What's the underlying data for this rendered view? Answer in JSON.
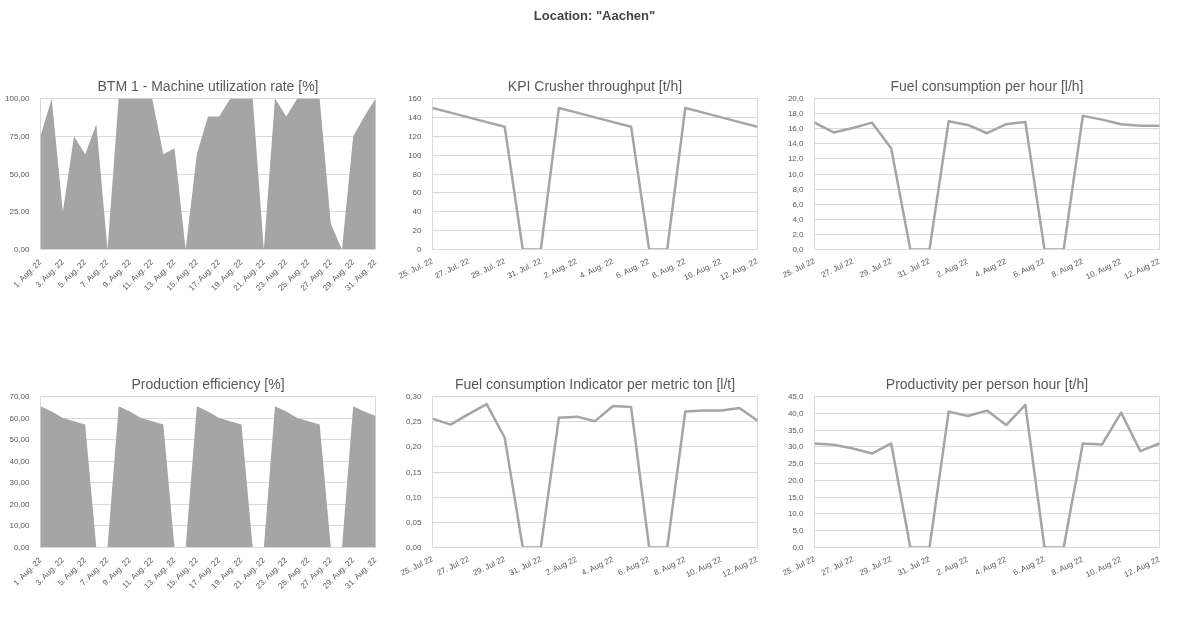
{
  "chart_data": [
    {
      "type": "other",
      "title": "Location: \"Aachen\""
    },
    {
      "type": "area",
      "title": "BTM 1 - Machine utilization rate [%]",
      "color": "#a5a5a5",
      "grid": "y",
      "categories": [
        "1. Aug. 22",
        null,
        "3. Aug. 22",
        null,
        "5. Aug. 22",
        null,
        "7. Aug. 22",
        null,
        "9. Aug. 22",
        null,
        "11. Aug. 22",
        null,
        "13. Aug. 22",
        null,
        "15. Aug. 22",
        null,
        "17. Aug. 22",
        null,
        "19. Aug. 22",
        null,
        "21. Aug. 22",
        null,
        "23. Aug. 22",
        null,
        "25. Aug. 22",
        null,
        "27. Aug. 22",
        null,
        "29. Aug. 22",
        null,
        "31. Aug. 22"
      ],
      "values": [
        75,
        100,
        25,
        75,
        63,
        83,
        0,
        100,
        100,
        100,
        100,
        63,
        67,
        0,
        63,
        88,
        88,
        100,
        100,
        100,
        0,
        100,
        88,
        100,
        100,
        100,
        17,
        0,
        75,
        88,
        100
      ],
      "ylim": [
        0,
        100
      ],
      "yticks": [
        {
          "value": 0,
          "label": "0,00"
        },
        {
          "value": 25,
          "label": "25,00"
        },
        {
          "value": 50,
          "label": "50,00"
        },
        {
          "value": 75,
          "label": "75,00"
        },
        {
          "value": 100,
          "label": "100,00"
        }
      ]
    },
    {
      "type": "line",
      "title": "KPI Crusher throughput [t/h]",
      "color": "#a5a5a5",
      "grid": "y",
      "categories": [
        "25. Jul. 22",
        null,
        "27. Jul. 22",
        null,
        "29. Jul. 22",
        null,
        "31. Jul. 22",
        null,
        "2. Aug. 22",
        null,
        "4. Aug. 22",
        null,
        "6. Aug. 22",
        null,
        "8. Aug. 22",
        null,
        "10. Aug. 22",
        null,
        "12. Aug. 22"
      ],
      "values": [
        150,
        145,
        140,
        135,
        130,
        0,
        0,
        150,
        145,
        140,
        135,
        130,
        0,
        0,
        150,
        145,
        140,
        135,
        130
      ],
      "ylim": [
        0,
        160
      ],
      "yticks": [
        0,
        20,
        40,
        60,
        80,
        100,
        120,
        140,
        160
      ]
    },
    {
      "type": "line",
      "title": "Fuel consumption per hour [l/h]",
      "color": "#a5a5a5",
      "grid": "y",
      "categories": [
        "25. Jul 22",
        null,
        "27. Jul 22",
        null,
        "29. Jul 22",
        null,
        "31. Jul 22",
        null,
        "2. Aug 22",
        null,
        "4. Aug 22",
        null,
        "6. Aug 22",
        null,
        "8. Aug 22",
        null,
        "10. Aug 22",
        null,
        "12. Aug 22"
      ],
      "values": [
        16.8,
        15.5,
        16.1,
        16.8,
        13.4,
        0,
        0,
        17.0,
        16.5,
        15.4,
        16.6,
        16.9,
        0,
        0,
        17.7,
        17.2,
        16.6,
        16.4,
        16.4
      ],
      "ylim": [
        0,
        20
      ],
      "yticks": [
        {
          "value": 0,
          "label": "0,0"
        },
        {
          "value": 2,
          "label": "2,0"
        },
        {
          "value": 4,
          "label": "4,0"
        },
        {
          "value": 6,
          "label": "6,0"
        },
        {
          "value": 8,
          "label": "8,0"
        },
        {
          "value": 10,
          "label": "10,0"
        },
        {
          "value": 12,
          "label": "12,0"
        },
        {
          "value": 14,
          "label": "14,0"
        },
        {
          "value": 16,
          "label": "16,0"
        },
        {
          "value": 18,
          "label": "18,0"
        },
        {
          "value": 20,
          "label": "20,0"
        }
      ]
    },
    {
      "type": "area",
      "title": "Production efficiency [%]",
      "color": "#a5a5a5",
      "grid": "y",
      "categories": [
        "1. Aug. 22",
        null,
        "3. Aug. 22",
        null,
        "5. Aug. 22",
        null,
        "7. Aug. 22",
        null,
        "9. Aug. 22",
        null,
        "11. Aug. 22",
        null,
        "13. Aug. 22",
        null,
        "15. Aug. 22",
        null,
        "17. Aug. 22",
        null,
        "19. Aug. 22",
        null,
        "21. Aug. 22",
        null,
        "23. Aug. 22",
        null,
        "25. Aug. 22",
        null,
        "27. Aug. 22",
        null,
        "29. Aug. 22",
        null,
        "31. Aug. 22"
      ],
      "values": [
        65.5,
        63,
        60,
        58.5,
        57,
        0,
        0,
        65.5,
        63,
        60,
        58.5,
        57,
        0,
        0,
        65.5,
        63,
        60,
        58.5,
        57,
        0,
        0,
        65.5,
        63,
        60,
        58.5,
        57,
        0,
        0,
        65.5,
        63,
        61
      ],
      "ylim": [
        0,
        70
      ],
      "yticks": [
        {
          "value": 0,
          "label": "0,00"
        },
        {
          "value": 10,
          "label": "10,00"
        },
        {
          "value": 20,
          "label": "20,00"
        },
        {
          "value": 30,
          "label": "30,00"
        },
        {
          "value": 40,
          "label": "40,00"
        },
        {
          "value": 50,
          "label": "50,00"
        },
        {
          "value": 60,
          "label": "60,00"
        },
        {
          "value": 70,
          "label": "70,00"
        }
      ]
    },
    {
      "type": "line",
      "title": "Fuel consumption Indicator per metric ton [l/t]",
      "color": "#a5a5a5",
      "grid": "y",
      "categories": [
        "25. Jul 22",
        null,
        "27. Jul 22",
        null,
        "29. Jul 22",
        null,
        "31. Jul 22",
        null,
        "2. Aug 22",
        null,
        "4. Aug 22",
        null,
        "6. Aug 22",
        null,
        "8. Aug 22",
        null,
        "10. Aug 22",
        null,
        "12. Aug 22"
      ],
      "values": [
        0.256,
        0.244,
        0.265,
        0.285,
        0.218,
        0,
        0,
        0.258,
        0.26,
        0.251,
        0.281,
        0.279,
        0,
        0,
        0.27,
        0.272,
        0.272,
        0.277,
        0.252
      ],
      "ylim": [
        0,
        0.3
      ],
      "yticks": [
        {
          "value": 0,
          "label": "0,00"
        },
        {
          "value": 0.05,
          "label": "0,05"
        },
        {
          "value": 0.1,
          "label": "0,10"
        },
        {
          "value": 0.15,
          "label": "0,15"
        },
        {
          "value": 0.2,
          "label": "0,20"
        },
        {
          "value": 0.25,
          "label": "0,25"
        },
        {
          "value": 0.3,
          "label": "0,30"
        }
      ]
    },
    {
      "type": "line",
      "title": "Productivity per person hour [t/h]",
      "color": "#a5a5a5",
      "grid": "y",
      "categories": [
        "25. Jul 22",
        null,
        "27. Jul 22",
        null,
        "29. Jul 22",
        null,
        "31. Jul 22",
        null,
        "2. Aug 22",
        null,
        "4. Aug 22",
        null,
        "6. Aug 22",
        null,
        "8. Aug 22",
        null,
        "10. Aug 22",
        null,
        "12. Aug 22"
      ],
      "values": [
        31.0,
        30.6,
        29.5,
        28.0,
        31.0,
        0,
        0,
        40.5,
        39.2,
        40.8,
        36.5,
        42.5,
        0,
        0,
        31.0,
        30.7,
        40.2,
        28.7,
        31.0
      ],
      "ylim": [
        0,
        45
      ],
      "yticks": [
        {
          "value": 0,
          "label": "0,0"
        },
        {
          "value": 5,
          "label": "5,0"
        },
        {
          "value": 10,
          "label": "10,0"
        },
        {
          "value": 15,
          "label": "15,0"
        },
        {
          "value": 20,
          "label": "20,0"
        },
        {
          "value": 25,
          "label": "25,0"
        },
        {
          "value": 30,
          "label": "30,0"
        },
        {
          "value": 35,
          "label": "35,0"
        },
        {
          "value": 40,
          "label": "40,0"
        },
        {
          "value": 45,
          "label": "45,0"
        }
      ]
    }
  ]
}
